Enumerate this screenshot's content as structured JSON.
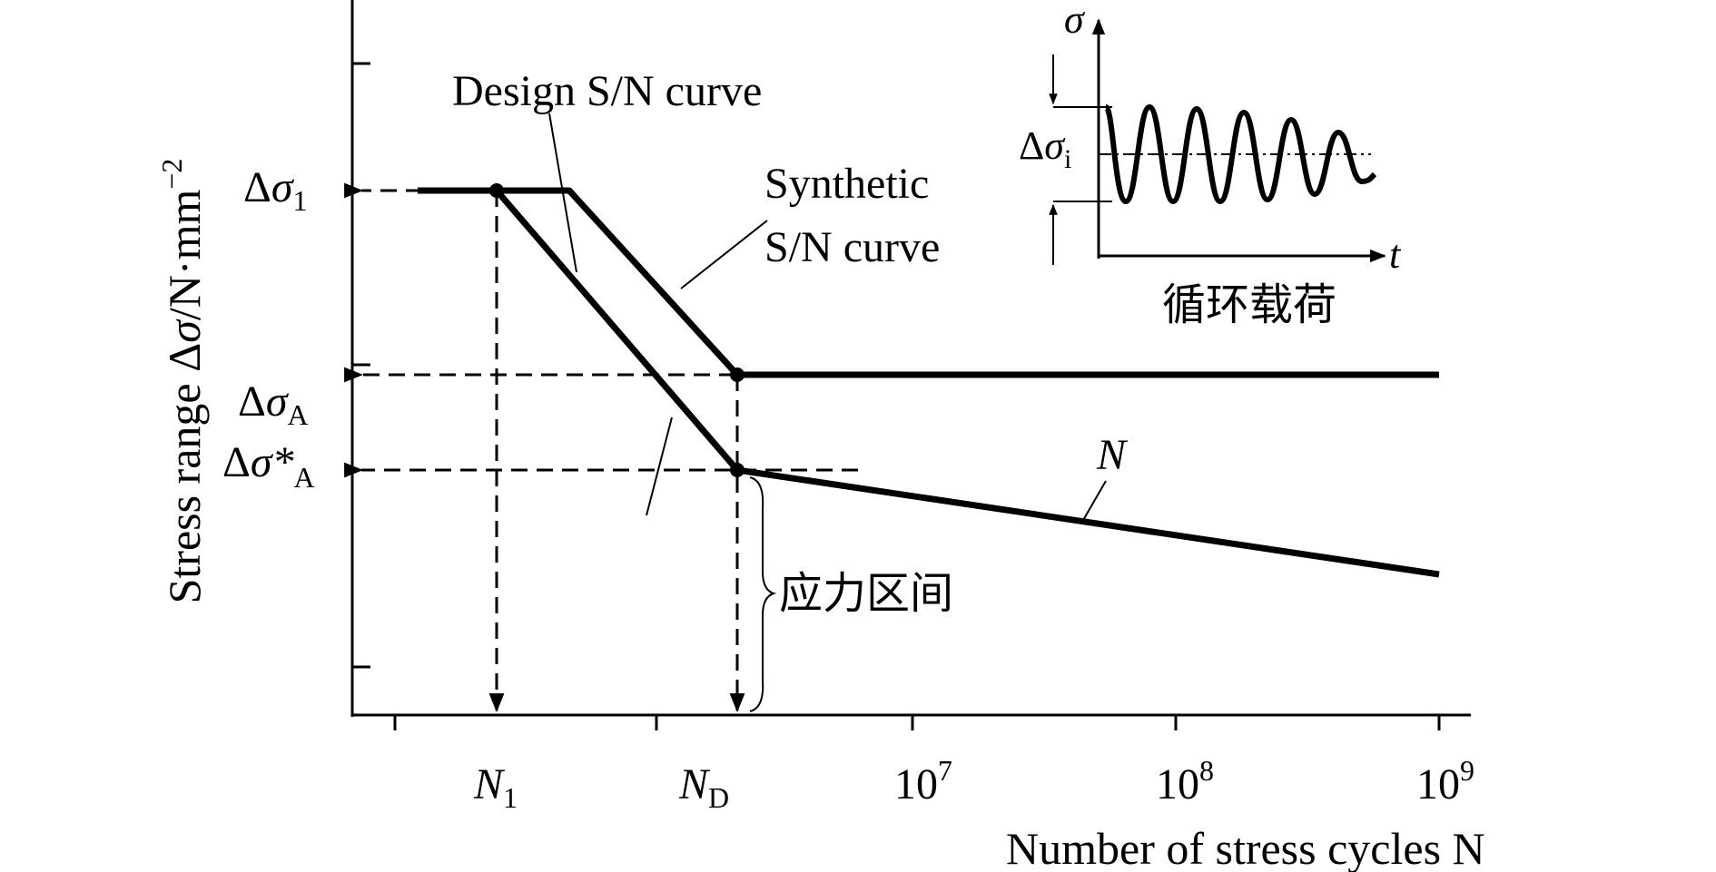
{
  "labels": {
    "design_curve": "Design S/N curve",
    "synthetic_curve_line1": "Synthetic",
    "synthetic_curve_line2": "S/N curve",
    "n_curve": "N",
    "stress_interval": "应力区间",
    "cyclic_load": "循环载荷"
  },
  "y_axis": {
    "title_prefix": "Stress range Δ",
    "title_symbol": "σ",
    "title_unit": "/N·mm",
    "title_exp": "−2",
    "ticks": [
      {
        "delta": "Δ",
        "sym": "σ",
        "sub": "1"
      },
      {
        "delta": "Δ",
        "sym": "σ",
        "sub": "A"
      },
      {
        "delta": "Δ",
        "sym": "σ*",
        "sub": "A"
      }
    ]
  },
  "x_axis": {
    "title": "Number of stress cycles N",
    "ticks": [
      {
        "sym": "N",
        "sub": "1"
      },
      {
        "sym": "N",
        "sub": "D"
      },
      {
        "base": "10",
        "exp": "7"
      },
      {
        "base": "10",
        "exp": "8"
      },
      {
        "base": "10",
        "exp": "9"
      }
    ]
  },
  "inset": {
    "y_symbol": "σ",
    "x_symbol": "t",
    "amp_delta": "Δ",
    "amp_sym": "σ",
    "amp_sub": "i"
  }
}
